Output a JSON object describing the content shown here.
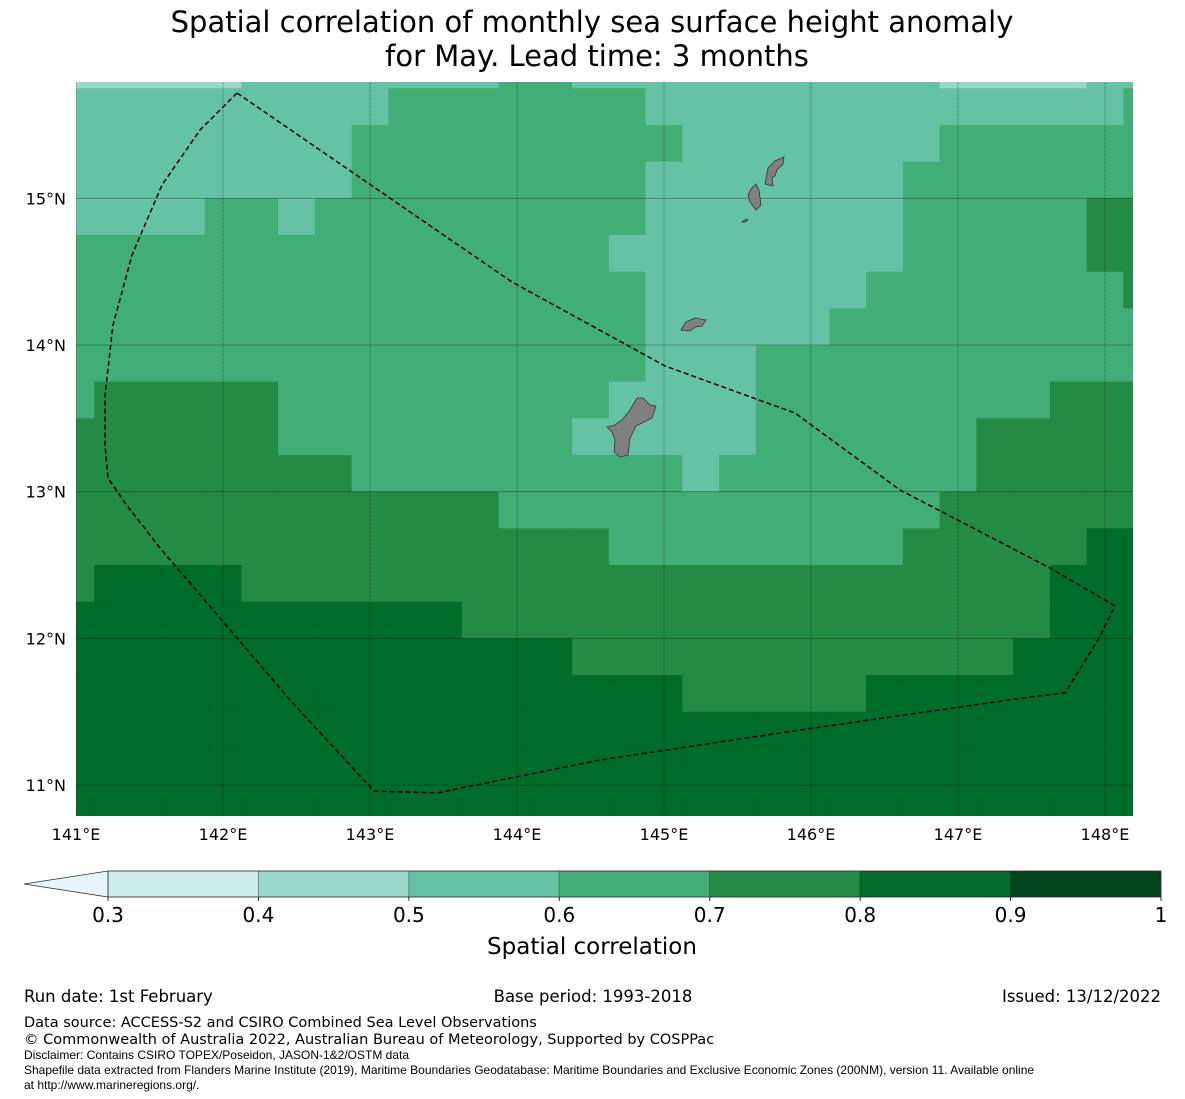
{
  "title": {
    "line1": "Spatial correlation of monthly sea surface height anomaly",
    "line2": "for May. Lead time: 3 months"
  },
  "chart_data": {
    "type": "heatmap",
    "title": "Spatial correlation of monthly sea surface height anomaly for May. Lead time: 3 months",
    "variable": "Spatial correlation",
    "lon_range": [
      141.0,
      148.19
    ],
    "lat_range": [
      10.79,
      15.79
    ],
    "x_ticks": [
      {
        "value": 141,
        "label": "141°E"
      },
      {
        "value": 142,
        "label": "142°E"
      },
      {
        "value": 143,
        "label": "143°E"
      },
      {
        "value": 144,
        "label": "144°E"
      },
      {
        "value": 145,
        "label": "145°E"
      },
      {
        "value": 146,
        "label": "146°E"
      },
      {
        "value": 147,
        "label": "147°E"
      },
      {
        "value": 148,
        "label": "148°E"
      }
    ],
    "y_ticks": [
      {
        "value": 15,
        "label": "15°N"
      },
      {
        "value": 14,
        "label": "14°N"
      },
      {
        "value": 13,
        "label": "13°N"
      },
      {
        "value": 12,
        "label": "12°N"
      },
      {
        "value": 11,
        "label": "11°N"
      }
    ],
    "grid_cell_size_deg": 0.25,
    "grid_first_lon_edge": 140.875,
    "grid_first_lat_edge": 16.0,
    "grid_encoding": "each digit d = correlation bin [0.d, 0.d+0.1); rows north to south, columns west to east",
    "grid_bins": [
      "444445555555665555555555444455",
      "555555555666666655555555555556",
      "555555556666666665555555666666",
      "555555556666666655555556666666",
      "555566566666666655555556666677",
      "666666666666666555555556666677",
      "666666666666666655555566666667",
      "666666666666666655555666666666",
      "666666666666666655566666666666",
      "677777666666666555566666666777",
      "777777666666665555566666677777",
      "777777776666666665666666677777",
      "777777777777666666666666777777",
      "777777777777777666666667777788",
      "788887777777777777777777777888",
      "888888888887777777777777777888",
      "888888888888887777777777778888",
      "888888888888888887777788888888",
      "888888888888888888888888888888",
      "888888888888888888888888888888",
      "888888888888888888888888888888"
    ],
    "colorbar": {
      "label": "Spatial correlation",
      "extend": "min",
      "bounds": [
        0.3,
        0.4,
        0.5,
        0.6,
        0.7,
        0.8,
        0.9,
        1.0
      ],
      "tick_labels": [
        "0.3",
        "0.4",
        "0.5",
        "0.6",
        "0.7",
        "0.8",
        "0.9",
        "1"
      ],
      "under_color": "#e5f5f9",
      "colors": [
        "#ccece6",
        "#99d8c9",
        "#66c2a4",
        "#41ae76",
        "#238b45",
        "#006d2c",
        "#00441b"
      ]
    },
    "land_color": "#808080",
    "boundary": "EEZ boundary (dashed)"
  },
  "footer": {
    "run_date": "Run date: 1st February",
    "base_period": "Base period: 1993-2018",
    "issued": "Issued: 13/12/2022",
    "data_source": "Data source: ACCESS-S2 and CSIRO Combined Sea Level Observations",
    "copyright": "© Commonwealth of Australia 2022, Australian Bureau of Meteorology, Supported by COSPPac",
    "disclaimer": "Disclaimer: Contains CSIRO TOPEX/Poseidon, JASON-1&2/OSTM data",
    "shapefile_line1": "Shapefile data extracted from Flanders Marine Institute (2019), Maritime Boundaries Geodatabase: Maritime Boundaries and Exclusive Economic Zones (200NM), version 11. Available online",
    "shapefile_line2": "at http://www.marineregions.org/."
  }
}
